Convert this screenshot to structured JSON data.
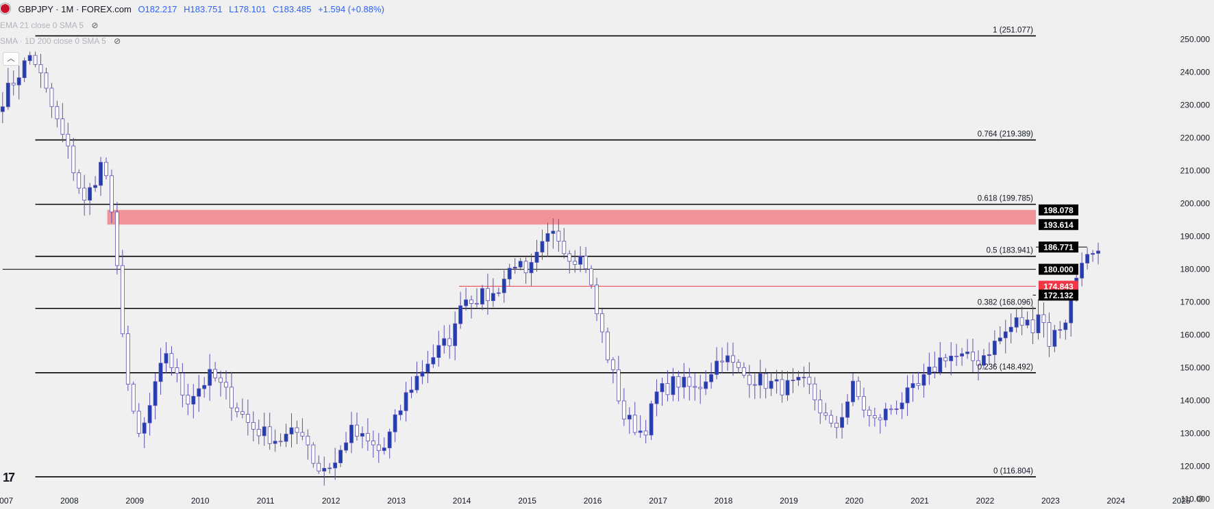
{
  "legend": {
    "symbol": "GBPJPY · 1M · FOREX.com",
    "open": "O182.217",
    "high": "H183.751",
    "low": "L178.101",
    "close": "C183.485",
    "change": "+1.594 (+0.88%)"
  },
  "indicators": [
    {
      "label": "EMA 21 close 0 SMA 5"
    },
    {
      "label": "SMA · 1D 200 close 0 SMA 5"
    }
  ],
  "colors": {
    "background": "#f0f0f0",
    "candle_up": "#1f3fb0",
    "candle_down_fill": "#ffffff",
    "candle_border": "#5a4fb0",
    "level_line": "#000000",
    "zone": "#f08a8f",
    "red_level": "#f23645",
    "axis_text": "#131722"
  },
  "chart_data": {
    "type": "candlestick",
    "symbol": "GBPJPY",
    "interval": "1M",
    "y_axis": {
      "range": [
        107,
        262
      ],
      "ticks": [
        110,
        120,
        130,
        140,
        150,
        160,
        170,
        180,
        190,
        200,
        210,
        220,
        230,
        240,
        250
      ],
      "tick_labels": [
        "110.000",
        "120.000",
        "130.000",
        "140.000",
        "150.000",
        "160.000",
        "170.000",
        "180.000",
        "190.000",
        "200.000",
        "210.000",
        "220.000",
        "230.000",
        "240.000",
        "250.000"
      ]
    },
    "x_axis": {
      "range": [
        2006.96,
        2025.52
      ],
      "ticks": [
        2007,
        2008,
        2009,
        2010,
        2011,
        2012,
        2013,
        2014,
        2015,
        2016,
        2017,
        2018,
        2019,
        2020,
        2021,
        2022,
        2023,
        2024,
        2025
      ],
      "tick_labels": [
        "2007",
        "2008",
        "2009",
        "2010",
        "2011",
        "2012",
        "2013",
        "2014",
        "2015",
        "2016",
        "2017",
        "2018",
        "2019",
        "2020",
        "2021",
        "2022",
        "2023",
        "2024",
        "2025"
      ]
    },
    "fib_levels": [
      {
        "value": 251.077,
        "label": "1 (251.077)"
      },
      {
        "value": 219.389,
        "label": "0.764 (219.389)"
      },
      {
        "value": 199.785,
        "label": "0.618 (199.785)"
      },
      {
        "value": 183.941,
        "label": "0.5 (183.941)"
      },
      {
        "value": 168.096,
        "label": "0.382 (168.096)"
      },
      {
        "value": 148.492,
        "label": "0.236 (148.492)"
      },
      {
        "value": 116.804,
        "label": "0 (116.804)"
      }
    ],
    "zone": {
      "from": 193.614,
      "to": 198.078,
      "x_from": 2008.6
    },
    "levels": [
      {
        "value": 198.078,
        "label": "198.078",
        "color": "dark",
        "x_from": null
      },
      {
        "value": 193.614,
        "label": "193.614",
        "color": "dark",
        "x_from": null
      },
      {
        "value": 186.771,
        "label": "186.771",
        "color": "dark",
        "x_from": 2023.58
      },
      {
        "value": 180.0,
        "label": "180.000",
        "color": "dark",
        "x_from": 2007.0
      },
      {
        "value": 174.843,
        "label": "174.843",
        "color": "red",
        "x_from": 2013.98
      },
      {
        "value": 172.132,
        "label": "172.132",
        "color": "dark",
        "x_from": 2022.75
      }
    ],
    "anchors": [
      [
        2007.0,
        232
      ],
      [
        2007.45,
        246
      ],
      [
        2007.7,
        232
      ],
      [
        2008.0,
        216
      ],
      [
        2008.25,
        200
      ],
      [
        2008.55,
        214
      ],
      [
        2008.7,
        190
      ],
      [
        2008.95,
        138
      ],
      [
        2009.1,
        128
      ],
      [
        2009.5,
        155
      ],
      [
        2009.8,
        140
      ],
      [
        2010.2,
        148
      ],
      [
        2010.8,
        132
      ],
      [
        2011.2,
        128
      ],
      [
        2011.6,
        131
      ],
      [
        2011.8,
        119
      ],
      [
        2012.1,
        121
      ],
      [
        2012.3,
        131
      ],
      [
        2012.8,
        124
      ],
      [
        2013.2,
        143
      ],
      [
        2013.5,
        152
      ],
      [
        2013.9,
        160
      ],
      [
        2014.0,
        171
      ],
      [
        2014.5,
        172
      ],
      [
        2014.85,
        183
      ],
      [
        2015.0,
        177
      ],
      [
        2015.45,
        194
      ],
      [
        2015.6,
        185
      ],
      [
        2015.9,
        183
      ],
      [
        2016.1,
        165
      ],
      [
        2016.5,
        135
      ],
      [
        2016.8,
        130
      ],
      [
        2017.0,
        142
      ],
      [
        2017.3,
        146
      ],
      [
        2017.6,
        143
      ],
      [
        2018.0,
        154
      ],
      [
        2018.3,
        148
      ],
      [
        2018.9,
        144
      ],
      [
        2019.3,
        145
      ],
      [
        2019.7,
        130
      ],
      [
        2020.0,
        144
      ],
      [
        2020.3,
        133
      ],
      [
        2020.6,
        138
      ],
      [
        2021.0,
        144
      ],
      [
        2021.4,
        154
      ],
      [
        2021.9,
        152
      ],
      [
        2022.2,
        158
      ],
      [
        2022.5,
        164
      ],
      [
        2022.75,
        163
      ],
      [
        2022.85,
        168
      ],
      [
        2023.0,
        158
      ],
      [
        2023.25,
        165
      ],
      [
        2023.5,
        184
      ],
      [
        2023.6,
        183
      ],
      [
        2023.75,
        183.5
      ]
    ]
  }
}
